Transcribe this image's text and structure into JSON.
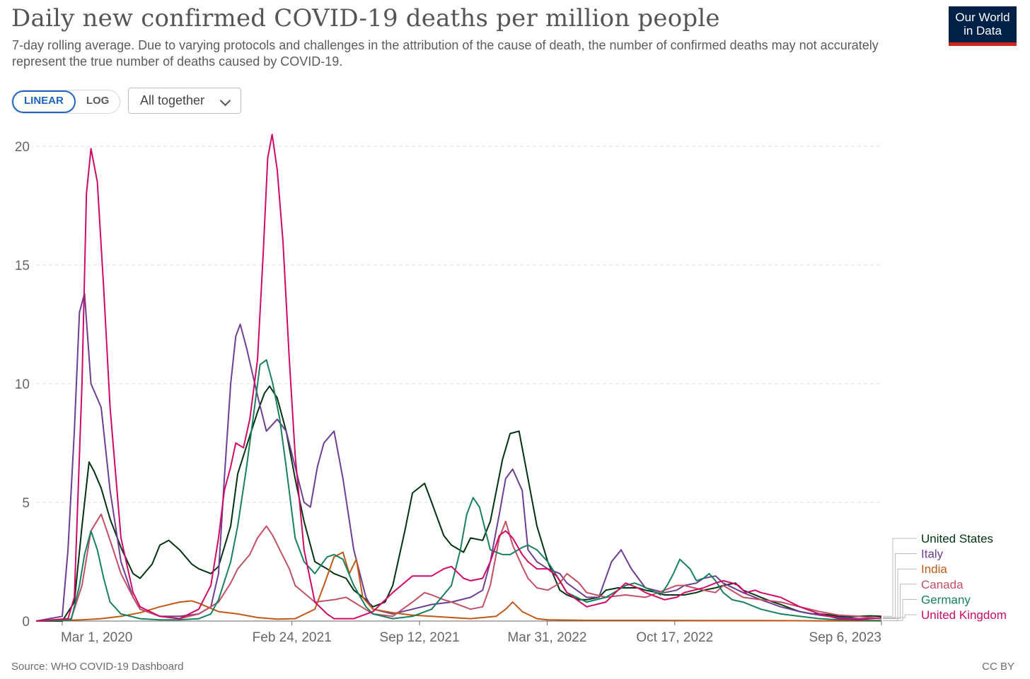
{
  "header": {
    "title": "Daily new confirmed COVID-19 deaths per million people",
    "subtitle": "7-day rolling average. Due to varying protocols and challenges in the attribution of the cause of death, the number of confirmed deaths may not accurately represent the true number of deaths caused by COVID-19.",
    "logo_line1": "Our World",
    "logo_line2": "in Data"
  },
  "controls": {
    "scale_linear": "LINEAR",
    "scale_log": "LOG",
    "selected_scale": "LINEAR",
    "dropdown_value": "All together"
  },
  "footer": {
    "source": "Source: WHO COVID-19 Dashboard",
    "license": "CC BY"
  },
  "colors": {
    "grid": "#dddddd",
    "axis": "#666666"
  },
  "chart_data": {
    "type": "line",
    "title": "Daily new confirmed COVID-19 deaths per million people",
    "xlabel": "",
    "ylabel": "",
    "ylim": [
      0,
      20
    ],
    "y_ticks": [
      0,
      5,
      10,
      15,
      20
    ],
    "x_tick_labels": [
      "Mar 1, 2020",
      "Feb 24, 2021",
      "Sep 12, 2021",
      "Mar 31, 2022",
      "Oct 17, 2022",
      "Sep 6, 2023"
    ],
    "x_tick_dates": [
      "2020-03-01",
      "2021-02-24",
      "2021-09-12",
      "2022-03-31",
      "2022-10-17",
      "2023-09-06"
    ],
    "xlim": [
      "2020-01-20",
      "2023-09-06"
    ],
    "grid": "horizontal dashed",
    "legend_placement": "right",
    "series": [
      {
        "name": "United States",
        "color": "#00330f",
        "x": [
          "2020-01-20",
          "2020-03-01",
          "2020-03-20",
          "2020-04-01",
          "2020-04-12",
          "2020-04-20",
          "2020-05-01",
          "2020-05-15",
          "2020-06-01",
          "2020-06-20",
          "2020-07-01",
          "2020-07-20",
          "2020-08-01",
          "2020-08-15",
          "2020-09-01",
          "2020-09-20",
          "2020-10-01",
          "2020-10-20",
          "2020-11-01",
          "2020-11-20",
          "2020-12-01",
          "2020-12-20",
          "2021-01-01",
          "2021-01-12",
          "2021-01-20",
          "2021-02-01",
          "2021-02-15",
          "2021-03-01",
          "2021-03-15",
          "2021-04-01",
          "2021-04-20",
          "2021-05-01",
          "2021-05-20",
          "2021-06-01",
          "2021-06-20",
          "2021-07-01",
          "2021-07-20",
          "2021-08-01",
          "2021-08-20",
          "2021-09-01",
          "2021-09-20",
          "2021-10-01",
          "2021-10-20",
          "2021-11-01",
          "2021-11-20",
          "2021-12-01",
          "2021-12-20",
          "2022-01-01",
          "2022-01-20",
          "2022-02-01",
          "2022-02-15",
          "2022-03-01",
          "2022-03-15",
          "2022-04-01",
          "2022-04-20",
          "2022-05-01",
          "2022-05-20",
          "2022-06-01",
          "2022-06-20",
          "2022-07-01",
          "2022-07-20",
          "2022-08-01",
          "2022-08-20",
          "2022-09-01",
          "2022-09-20",
          "2022-10-01",
          "2022-10-20",
          "2022-11-01",
          "2022-11-20",
          "2022-12-01",
          "2022-12-20",
          "2023-01-01",
          "2023-01-20",
          "2023-02-01",
          "2023-02-20",
          "2023-03-01",
          "2023-03-20",
          "2023-04-01",
          "2023-04-20",
          "2023-05-01",
          "2023-05-20",
          "2023-06-01",
          "2023-06-20",
          "2023-07-01",
          "2023-07-20",
          "2023-08-01",
          "2023-08-20",
          "2023-09-06"
        ],
        "y": [
          0,
          0,
          0.8,
          4.0,
          6.7,
          6.3,
          5.6,
          4.3,
          3.1,
          2.0,
          1.8,
          2.4,
          3.2,
          3.4,
          3.0,
          2.4,
          2.2,
          2.0,
          2.3,
          4.0,
          6.2,
          7.8,
          8.8,
          9.6,
          9.9,
          9.4,
          8.0,
          6.0,
          4.2,
          2.5,
          2.2,
          2.0,
          1.8,
          1.3,
          0.9,
          0.6,
          0.8,
          1.5,
          3.8,
          5.4,
          5.8,
          5.0,
          3.6,
          3.2,
          2.9,
          3.5,
          3.4,
          4.2,
          6.8,
          7.9,
          8.0,
          6.0,
          4.0,
          2.5,
          1.3,
          1.1,
          0.9,
          0.9,
          1.0,
          1.3,
          1.4,
          1.4,
          1.4,
          1.3,
          1.2,
          1.1,
          1.1,
          1.1,
          1.2,
          1.3,
          1.4,
          1.5,
          1.6,
          1.3,
          1.1,
          1.0,
          0.8,
          0.7,
          0.5,
          0.4,
          0.3,
          0.3,
          0.25,
          0.2,
          0.18,
          0.2,
          0.22,
          0.2
        ]
      },
      {
        "name": "Italy",
        "color": "#6d3e91",
        "x": [
          "2020-01-20",
          "2020-03-01",
          "2020-03-10",
          "2020-03-20",
          "2020-03-28",
          "2020-04-05",
          "2020-04-15",
          "2020-05-01",
          "2020-05-15",
          "2020-06-01",
          "2020-06-20",
          "2020-07-01",
          "2020-08-01",
          "2020-09-01",
          "2020-10-01",
          "2020-10-20",
          "2020-11-01",
          "2020-11-10",
          "2020-11-20",
          "2020-11-28",
          "2020-12-05",
          "2020-12-15",
          "2021-01-01",
          "2021-01-15",
          "2021-02-01",
          "2021-02-15",
          "2021-03-01",
          "2021-03-15",
          "2021-03-25",
          "2021-04-05",
          "2021-04-15",
          "2021-05-01",
          "2021-05-15",
          "2021-06-01",
          "2021-06-20",
          "2021-07-01",
          "2021-08-01",
          "2021-09-01",
          "2021-10-01",
          "2021-11-01",
          "2021-12-01",
          "2021-12-20",
          "2022-01-01",
          "2022-01-15",
          "2022-01-25",
          "2022-02-05",
          "2022-02-20",
          "2022-03-01",
          "2022-03-15",
          "2022-04-01",
          "2022-04-20",
          "2022-05-01",
          "2022-06-01",
          "2022-06-20",
          "2022-07-10",
          "2022-07-25",
          "2022-08-10",
          "2022-09-01",
          "2022-10-01",
          "2022-10-20",
          "2022-11-01",
          "2022-11-20",
          "2022-12-01",
          "2022-12-20",
          "2023-01-01",
          "2023-02-01",
          "2023-03-01",
          "2023-04-01",
          "2023-05-01",
          "2023-06-01",
          "2023-07-01",
          "2023-08-01",
          "2023-09-06"
        ],
        "y": [
          0,
          0.2,
          3.0,
          8.0,
          13.0,
          13.8,
          10.0,
          9.0,
          5.5,
          2.5,
          1.0,
          0.5,
          0.2,
          0.2,
          0.3,
          0.6,
          2.0,
          6.0,
          10.0,
          12.0,
          12.5,
          11.5,
          9.5,
          8.0,
          8.5,
          8.0,
          6.5,
          5.0,
          4.8,
          6.5,
          7.5,
          8.0,
          6.0,
          3.0,
          1.0,
          0.5,
          0.3,
          0.5,
          0.7,
          0.8,
          1.0,
          1.3,
          2.5,
          4.5,
          6.0,
          6.4,
          5.5,
          3.0,
          2.5,
          2.2,
          2.0,
          1.6,
          1.0,
          1.0,
          2.5,
          3.0,
          2.2,
          1.4,
          1.2,
          1.3,
          1.5,
          1.6,
          1.8,
          1.9,
          1.6,
          1.2,
          0.9,
          0.6,
          0.4,
          0.25,
          0.15,
          0.1,
          0.12
        ]
      },
      {
        "name": "India",
        "color": "#c05917",
        "x": [
          "2020-01-20",
          "2020-04-01",
          "2020-05-01",
          "2020-06-01",
          "2020-07-01",
          "2020-08-01",
          "2020-09-01",
          "2020-09-20",
          "2020-10-01",
          "2020-11-01",
          "2020-12-01",
          "2021-01-01",
          "2021-02-01",
          "2021-03-01",
          "2021-04-01",
          "2021-04-15",
          "2021-05-01",
          "2021-05-15",
          "2021-05-25",
          "2021-06-05",
          "2021-06-15",
          "2021-07-01",
          "2021-08-01",
          "2021-09-01",
          "2021-10-01",
          "2021-11-01",
          "2021-12-01",
          "2022-01-10",
          "2022-01-25",
          "2022-02-05",
          "2022-02-20",
          "2022-03-15",
          "2022-04-01",
          "2022-06-01",
          "2022-09-01",
          "2022-12-01",
          "2023-03-01",
          "2023-06-01",
          "2023-09-06"
        ],
        "y": [
          0,
          0.05,
          0.1,
          0.2,
          0.35,
          0.6,
          0.8,
          0.85,
          0.75,
          0.4,
          0.3,
          0.15,
          0.08,
          0.1,
          0.5,
          1.5,
          2.7,
          2.9,
          2.0,
          2.6,
          1.0,
          0.5,
          0.35,
          0.25,
          0.2,
          0.15,
          0.1,
          0.2,
          0.5,
          0.8,
          0.4,
          0.1,
          0.05,
          0.03,
          0.03,
          0.02,
          0.02,
          0.01,
          0.01
        ]
      },
      {
        "name": "Canada",
        "color": "#c15065",
        "x": [
          "2020-01-20",
          "2020-03-15",
          "2020-04-01",
          "2020-04-15",
          "2020-05-01",
          "2020-05-10",
          "2020-05-20",
          "2020-06-01",
          "2020-06-20",
          "2020-07-01",
          "2020-08-01",
          "2020-09-01",
          "2020-10-01",
          "2020-11-01",
          "2020-11-20",
          "2020-12-01",
          "2020-12-20",
          "2021-01-01",
          "2021-01-15",
          "2021-01-25",
          "2021-02-05",
          "2021-02-20",
          "2021-03-01",
          "2021-04-01",
          "2021-05-01",
          "2021-05-20",
          "2021-06-01",
          "2021-07-01",
          "2021-08-01",
          "2021-09-01",
          "2021-09-20",
          "2021-10-01",
          "2021-10-20",
          "2021-11-01",
          "2021-12-01",
          "2021-12-20",
          "2022-01-01",
          "2022-01-15",
          "2022-01-25",
          "2022-02-05",
          "2022-02-20",
          "2022-03-01",
          "2022-03-15",
          "2022-04-01",
          "2022-04-20",
          "2022-05-01",
          "2022-05-20",
          "2022-06-01",
          "2022-07-01",
          "2022-08-01",
          "2022-09-01",
          "2022-10-01",
          "2022-10-20",
          "2022-11-01",
          "2022-12-01",
          "2022-12-20",
          "2023-01-01",
          "2023-02-01",
          "2023-03-01",
          "2023-04-01",
          "2023-05-01",
          "2023-06-01",
          "2023-07-01",
          "2023-08-01",
          "2023-09-06"
        ],
        "y": [
          0,
          0.1,
          1.5,
          3.8,
          4.5,
          3.8,
          3.0,
          2.0,
          1.0,
          0.5,
          0.2,
          0.1,
          0.3,
          0.8,
          1.6,
          2.2,
          2.8,
          3.5,
          4.0,
          3.6,
          3.0,
          2.2,
          1.5,
          0.8,
          0.9,
          1.0,
          0.8,
          0.3,
          0.2,
          0.8,
          1.2,
          1.1,
          0.9,
          0.8,
          0.5,
          0.6,
          1.5,
          3.5,
          4.2,
          3.2,
          2.3,
          1.8,
          1.4,
          1.3,
          1.6,
          2.0,
          1.6,
          1.2,
          1.0,
          1.1,
          1.0,
          1.3,
          1.5,
          1.5,
          1.3,
          1.2,
          1.5,
          1.0,
          0.9,
          0.8,
          0.6,
          0.4,
          0.25,
          0.2,
          0.1
        ]
      },
      {
        "name": "Germany",
        "color": "#18805f",
        "x": [
          "2020-01-20",
          "2020-03-15",
          "2020-03-28",
          "2020-04-05",
          "2020-04-15",
          "2020-04-25",
          "2020-05-05",
          "2020-05-15",
          "2020-06-01",
          "2020-07-01",
          "2020-08-01",
          "2020-09-01",
          "2020-10-01",
          "2020-10-20",
          "2020-11-01",
          "2020-11-20",
          "2020-12-01",
          "2020-12-15",
          "2020-12-25",
          "2021-01-05",
          "2021-01-15",
          "2021-01-25",
          "2021-02-05",
          "2021-02-15",
          "2021-03-01",
          "2021-03-15",
          "2021-04-01",
          "2021-04-20",
          "2021-05-01",
          "2021-05-15",
          "2021-06-01",
          "2021-06-20",
          "2021-07-01",
          "2021-08-01",
          "2021-09-01",
          "2021-10-01",
          "2021-11-01",
          "2021-11-15",
          "2021-11-25",
          "2021-12-05",
          "2021-12-15",
          "2022-01-01",
          "2022-01-20",
          "2022-02-01",
          "2022-02-20",
          "2022-03-01",
          "2022-03-15",
          "2022-04-01",
          "2022-04-20",
          "2022-05-01",
          "2022-06-01",
          "2022-07-01",
          "2022-07-20",
          "2022-08-01",
          "2022-08-15",
          "2022-08-25",
          "2022-09-10",
          "2022-09-25",
          "2022-10-05",
          "2022-10-15",
          "2022-10-25",
          "2022-11-10",
          "2022-11-20",
          "2022-12-01",
          "2022-12-10",
          "2022-12-20",
          "2023-01-01",
          "2023-01-15",
          "2023-02-01",
          "2023-03-01",
          "2023-04-01",
          "2023-05-01",
          "2023-06-01",
          "2023-07-01",
          "2023-08-01",
          "2023-09-06"
        ],
        "y": [
          0,
          0.05,
          1.5,
          2.8,
          3.8,
          3.0,
          1.8,
          0.8,
          0.3,
          0.1,
          0.05,
          0.05,
          0.1,
          0.3,
          0.9,
          2.5,
          4.0,
          6.5,
          8.5,
          10.8,
          11.0,
          10.0,
          8.5,
          6.5,
          3.5,
          2.5,
          2.0,
          2.7,
          2.8,
          2.6,
          1.5,
          0.6,
          0.3,
          0.1,
          0.2,
          0.5,
          1.5,
          3.0,
          4.5,
          5.2,
          4.8,
          3.0,
          2.8,
          2.8,
          3.1,
          3.2,
          3.0,
          2.5,
          1.7,
          1.2,
          0.8,
          1.0,
          1.3,
          1.5,
          1.6,
          1.5,
          1.3,
          1.1,
          1.5,
          2.0,
          2.6,
          2.2,
          1.7,
          1.8,
          2.0,
          1.7,
          1.2,
          0.9,
          0.8,
          0.5,
          0.3,
          0.2,
          0.1,
          0.05,
          0.03,
          0.02
        ]
      },
      {
        "name": "United Kingdom",
        "color": "#cf0a66",
        "x": [
          "2020-01-20",
          "2020-03-10",
          "2020-03-20",
          "2020-04-01",
          "2020-04-08",
          "2020-04-15",
          "2020-04-25",
          "2020-05-05",
          "2020-05-15",
          "2020-06-01",
          "2020-06-20",
          "2020-07-01",
          "2020-08-01",
          "2020-09-01",
          "2020-10-01",
          "2020-10-20",
          "2020-11-01",
          "2020-11-10",
          "2020-11-20",
          "2020-11-28",
          "2020-12-10",
          "2020-12-20",
          "2021-01-01",
          "2021-01-10",
          "2021-01-17",
          "2021-01-24",
          "2021-02-01",
          "2021-02-10",
          "2021-02-20",
          "2021-03-01",
          "2021-03-15",
          "2021-04-01",
          "2021-04-20",
          "2021-05-01",
          "2021-06-01",
          "2021-07-01",
          "2021-08-01",
          "2021-09-01",
          "2021-10-01",
          "2021-10-20",
          "2021-11-01",
          "2021-11-20",
          "2021-12-01",
          "2021-12-20",
          "2022-01-01",
          "2022-01-15",
          "2022-01-25",
          "2022-02-05",
          "2022-02-20",
          "2022-03-01",
          "2022-03-15",
          "2022-04-01",
          "2022-04-15",
          "2022-05-01",
          "2022-06-01",
          "2022-07-01",
          "2022-07-20",
          "2022-08-01",
          "2022-08-20",
          "2022-09-01",
          "2022-10-01",
          "2022-10-20",
          "2022-11-01",
          "2022-12-01",
          "2022-12-20",
          "2023-01-01",
          "2023-01-15",
          "2023-01-25",
          "2023-02-05",
          "2023-02-20",
          "2023-03-01",
          "2023-04-01",
          "2023-05-01",
          "2023-06-01",
          "2023-07-01",
          "2023-08-01",
          "2023-09-06"
        ],
        "y": [
          0,
          0.1,
          1.0,
          10.0,
          18.0,
          19.9,
          18.5,
          14.0,
          9.0,
          3.5,
          1.2,
          0.6,
          0.2,
          0.1,
          0.5,
          1.5,
          3.5,
          5.5,
          6.5,
          7.5,
          7.3,
          8.5,
          11.0,
          15.5,
          19.5,
          20.5,
          19.0,
          16.0,
          11.0,
          7.0,
          3.0,
          0.8,
          0.3,
          0.1,
          0.1,
          0.4,
          1.2,
          1.9,
          1.9,
          2.2,
          2.3,
          1.8,
          1.7,
          1.8,
          2.5,
          3.6,
          3.8,
          3.5,
          2.8,
          2.5,
          2.2,
          2.2,
          1.9,
          1.2,
          0.6,
          0.8,
          1.3,
          1.6,
          1.4,
          1.2,
          0.9,
          1.0,
          1.2,
          1.4,
          1.6,
          1.7,
          1.6,
          1.5,
          1.2,
          1.3,
          1.2,
          1.0,
          0.6,
          0.3,
          0.1,
          0.05,
          0.15
        ]
      }
    ]
  }
}
